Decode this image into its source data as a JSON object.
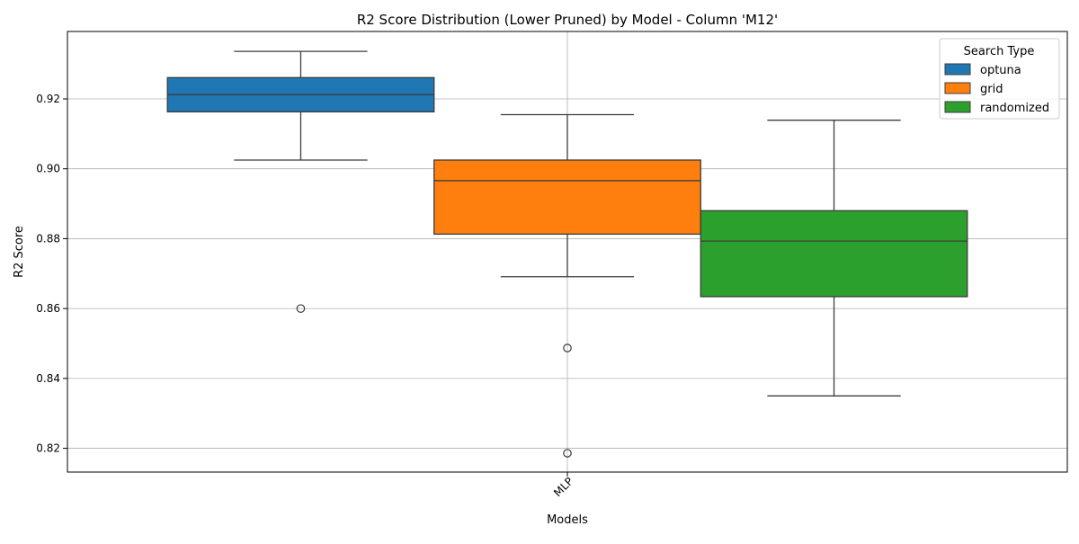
{
  "chart_data": {
    "type": "box",
    "title": "R2 Score Distribution (Lower Pruned) by Model - Column 'M12'",
    "xlabel": "Models",
    "ylabel": "R2 Score",
    "categories": [
      "MLP"
    ],
    "ylim": [
      0.8132,
      0.9393
    ],
    "yticks": [
      0.82,
      0.84,
      0.86,
      0.88,
      0.9,
      0.92
    ],
    "ytick_labels": [
      "0.82",
      "0.84",
      "0.86",
      "0.88",
      "0.90",
      "0.92"
    ],
    "grid": true,
    "legend": {
      "title": "Search Type",
      "position": "top-right"
    },
    "series": [
      {
        "name": "optuna",
        "color": "#1f77b4",
        "whisker_low": 0.9025,
        "q1": 0.9163,
        "median": 0.9212,
        "q3": 0.9261,
        "whisker_high": 0.9336,
        "outliers": [
          0.86
        ]
      },
      {
        "name": "grid",
        "color": "#ff7f0e",
        "whisker_low": 0.8691,
        "q1": 0.8813,
        "median": 0.8966,
        "q3": 0.9025,
        "whisker_high": 0.9155,
        "outliers": [
          0.8487,
          0.8186
        ]
      },
      {
        "name": "randomized",
        "color": "#2ca02c",
        "whisker_low": 0.835,
        "q1": 0.8634,
        "median": 0.8793,
        "q3": 0.888,
        "whisker_high": 0.9139,
        "outliers": []
      }
    ]
  }
}
